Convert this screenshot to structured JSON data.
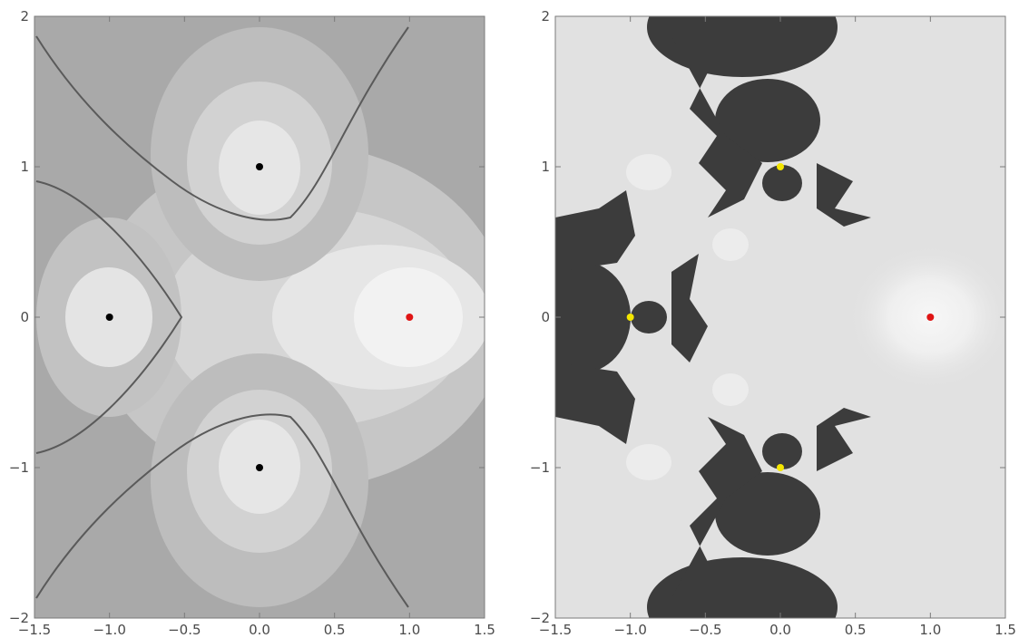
{
  "panels": [
    {
      "id": "left",
      "x_ticks": [
        "−1.5",
        "−1.0",
        "−0.5",
        "0.0",
        "0.5",
        "1.0",
        "1.5"
      ],
      "y_ticks": [
        "2",
        "1",
        "0",
        "−1",
        "−2"
      ],
      "xlim": [
        -1.5,
        1.5
      ],
      "ylim": [
        -2,
        2
      ],
      "background": "#a8a8a8",
      "points": [
        {
          "x": 0,
          "y": 1,
          "color": "#000000"
        },
        {
          "x": -1,
          "y": 0,
          "color": "#000000"
        },
        {
          "x": 0,
          "y": -1,
          "color": "#000000"
        },
        {
          "x": 1,
          "y": 0,
          "color": "#e01515"
        }
      ]
    },
    {
      "id": "right",
      "x_ticks": [
        "−1.5",
        "−1.0",
        "−0.5",
        "0.0",
        "0.5",
        "1.0",
        "1.5"
      ],
      "y_ticks": [
        "2",
        "1",
        "0",
        "−1",
        "−2"
      ],
      "xlim": [
        -1.5,
        1.5
      ],
      "ylim": [
        -2,
        2
      ],
      "background": "#e2e2e2",
      "points": [
        {
          "x": 0,
          "y": 1,
          "color": "#f4e600"
        },
        {
          "x": -1,
          "y": 0,
          "color": "#f4e600"
        },
        {
          "x": 0,
          "y": -1,
          "color": "#f4e600"
        },
        {
          "x": 1,
          "y": 0,
          "color": "#e01515"
        }
      ]
    }
  ]
}
